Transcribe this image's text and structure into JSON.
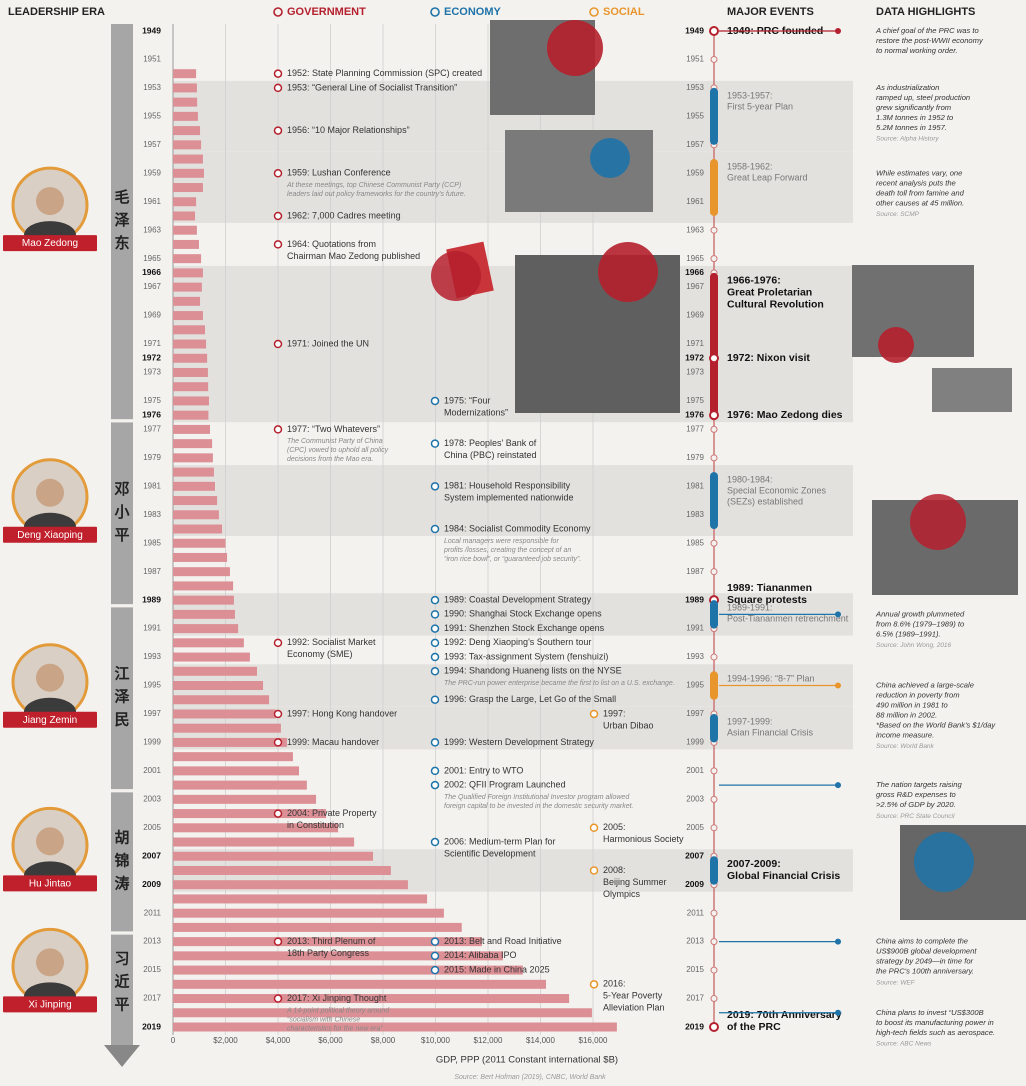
{
  "headers": {
    "leadership": "LEADERSHIP ERA",
    "government": "GOVERNMENT",
    "economy": "ECONOMY",
    "social": "SOCIAL",
    "major_events": "MAJOR EVENTS",
    "data_highlights": "DATA HIGHLIGHTS"
  },
  "chart_data": {
    "type": "bar",
    "orientation": "horizontal",
    "color": "#dc9096",
    "categories": [
      "1949",
      null,
      "1951",
      null,
      "1953",
      null,
      "1955",
      null,
      "1957",
      null,
      "1959",
      null,
      "1961",
      null,
      "1963",
      null,
      "1965",
      "1966",
      "1967",
      null,
      "1969",
      null,
      "1971",
      "1972",
      "1973",
      null,
      "1975",
      "1976",
      "1977",
      null,
      "1979",
      null,
      "1981",
      null,
      "1983",
      null,
      "1985",
      null,
      "1987",
      null,
      "1989",
      null,
      "1991",
      null,
      "1993",
      null,
      "1995",
      null,
      "1997",
      null,
      "1999",
      null,
      "2001",
      null,
      "2003",
      null,
      "2005",
      null,
      "2007",
      null,
      "2009",
      null,
      "2011",
      null,
      "2013",
      null,
      "2015",
      null,
      "2017",
      null,
      "2019"
    ],
    "values": [
      null,
      null,
      null,
      880,
      910,
      920,
      950,
      1030,
      1070,
      1140,
      1180,
      1140,
      880,
      840,
      910,
      990,
      1070,
      1140,
      1100,
      1030,
      1140,
      1220,
      1260,
      1300,
      1330,
      1340,
      1370,
      1350,
      1410,
      1490,
      1520,
      1560,
      1600,
      1680,
      1750,
      1870,
      2000,
      2060,
      2170,
      2290,
      2320,
      2360,
      2480,
      2700,
      2930,
      3200,
      3430,
      3660,
      3920,
      4110,
      4340,
      4570,
      4800,
      5100,
      5450,
      5830,
      6290,
      6900,
      7620,
      8300,
      8950,
      9680,
      10320,
      11000,
      11770,
      12570,
      13330,
      14210,
      15090,
      15960,
      16910
    ],
    "bold_years": [
      1949,
      1966,
      1972,
      1976,
      1989,
      2007,
      2009,
      2019
    ],
    "xlim": [
      0,
      17500
    ],
    "xticks": [
      0,
      {
        "value": 2000,
        "label": "$2,000"
      },
      {
        "value": 4000,
        "label": "$4,000"
      },
      {
        "value": 6000,
        "label": "$6,000"
      },
      {
        "value": 8000,
        "label": "$8,000"
      },
      {
        "value": 10000,
        "label": "$10,000"
      },
      {
        "value": 12000,
        "label": "$12,000"
      },
      {
        "value": 14000,
        "label": "$14,000"
      },
      {
        "value": 16000,
        "label": "$16,000"
      }
    ],
    "grid": true,
    "xlabel": "GDP, PPP (2011 Constant international $B)",
    "source": "Source: Bert Hofman (2019), CNBC, World Bank"
  },
  "leaders": [
    {
      "name": "Mao Zedong",
      "chinese": "毛泽东",
      "start": 1949,
      "end": 1976
    },
    {
      "name": "Deng Xiaoping",
      "chinese": "邓小平",
      "start": 1977,
      "end": 1989
    },
    {
      "name": "Jiang Zemin",
      "chinese": "江泽民",
      "start": 1990,
      "end": 2002
    },
    {
      "name": "Hu Jintao",
      "chinese": "胡锦涛",
      "start": 2003,
      "end": 2012
    },
    {
      "name": "Xi Jinping",
      "chinese": "习近平",
      "start": 2013,
      "end": 2019
    }
  ],
  "government": [
    {
      "year": 1952,
      "lines": [
        "1952: State Planning Commission (SPC) created"
      ]
    },
    {
      "year": 1953,
      "lines": [
        "1953: “General Line of Socialist Transition”"
      ]
    },
    {
      "year": 1956,
      "lines": [
        "1956: “10 Major Relationships”"
      ]
    },
    {
      "year": 1959,
      "lines": [
        "1959: Lushan Conference"
      ],
      "note": [
        "At these meetings, top Chinese Communist Party (CCP)",
        "leaders laid out policy frameworks for the country's future."
      ]
    },
    {
      "year": 1962,
      "lines": [
        "1962: 7,000 Cadres meeting"
      ]
    },
    {
      "year": 1964,
      "lines": [
        "1964: Quotations from",
        "Chairman Mao Zedong published"
      ]
    },
    {
      "year": 1971,
      "lines": [
        "1971: Joined the UN"
      ]
    },
    {
      "year": 1977,
      "lines": [
        "1977: “Two Whatevers”"
      ],
      "note": [
        "The Communist Party of China",
        "(CPC) vowed to uphold all policy",
        "decisions from the Mao era."
      ]
    },
    {
      "year": 1992,
      "lines": [
        "1992: Socialist Market",
        "Economy (SME)"
      ]
    },
    {
      "year": 1997,
      "lines": [
        "1997: Hong Kong handover"
      ]
    },
    {
      "year": 1999,
      "lines": [
        "1999: Macau handover"
      ]
    },
    {
      "year": 2004,
      "lines": [
        "2004: Private Property",
        "in Constitution"
      ]
    },
    {
      "year": 2013,
      "lines": [
        "2013: Third Plenum of",
        "18th Party Congress"
      ]
    },
    {
      "year": 2017,
      "lines": [
        "2017: Xi Jinping Thought"
      ],
      "note": [
        "A 14-point political theory around",
        "“socialism with Chinese",
        "characteristics for the new era”"
      ]
    }
  ],
  "economy": [
    {
      "year": 1975,
      "lines": [
        "1975: “Four",
        "Modernizations”"
      ]
    },
    {
      "year": 1978,
      "lines": [
        "1978: Peoples' Bank of",
        "China (PBC) reinstated"
      ]
    },
    {
      "year": 1981,
      "lines": [
        "1981: Household Responsibility",
        "System implemented nationwide"
      ]
    },
    {
      "year": 1984,
      "lines": [
        "1984: Socialist Commodity Economy"
      ],
      "note": [
        "Local managers were responsible for",
        "profits /losses, creating the concept of an",
        "“iron rice bowl”, or “guaranteed job security”."
      ]
    },
    {
      "year": 1989,
      "lines": [
        "1989: Coastal Development Strategy"
      ]
    },
    {
      "year": 1990,
      "lines": [
        "1990: Shanghai Stock Exchange opens"
      ]
    },
    {
      "year": 1991,
      "lines": [
        "1991: Shenzhen Stock Exchange opens"
      ]
    },
    {
      "year": 1992,
      "lines": [
        "1992: Deng Xiaoping's Southern tour"
      ]
    },
    {
      "year": 1993,
      "lines": [
        "1993: Tax-assignment System (fenshuizi)"
      ]
    },
    {
      "year": 1994,
      "lines": [
        "1994: Shandong Huaneng lists on the NYSE"
      ],
      "note": [
        "The PRC-run power enterprise became the first to list on a U.S. exchange."
      ]
    },
    {
      "year": 1996,
      "lines": [
        "1996: Grasp the Large, Let Go of the Small"
      ]
    },
    {
      "year": 1999,
      "lines": [
        "1999: Western Development Strategy"
      ]
    },
    {
      "year": 2001,
      "lines": [
        "2001: Entry to WTO"
      ]
    },
    {
      "year": 2002,
      "lines": [
        "2002: QFII Program Launched"
      ],
      "note": [
        "The Qualified Foreign Institutional Investor program allowed",
        "foreign capital to be invested in the domestic security market."
      ]
    },
    {
      "year": 2006,
      "lines": [
        "2006: Medium-term Plan for",
        "Scientific Development"
      ]
    },
    {
      "year": 2013,
      "lines": [
        "2013: Belt and Road Initiative"
      ]
    },
    {
      "year": 2014,
      "lines": [
        "2014: Alibaba IPO"
      ]
    },
    {
      "year": 2015,
      "lines": [
        "2015: Made in China 2025"
      ]
    }
  ],
  "social": [
    {
      "year": 1997,
      "lines": [
        "1997:",
        "Urban Dibao"
      ]
    },
    {
      "year": 2005,
      "lines": [
        "2005:",
        "Harmonious Society"
      ]
    },
    {
      "year": 2008,
      "lines": [
        "2008:",
        "Beijing Summer",
        "Olympics"
      ]
    },
    {
      "year": 2016,
      "lines": [
        "2016:",
        "5-Year Poverty",
        "Alleviation Plan"
      ]
    }
  ],
  "major_events": [
    {
      "year": 1949,
      "lines": [
        "1949: PRC founded"
      ],
      "bold": true,
      "color": "#b5202e"
    },
    {
      "start": 1953,
      "end": 1957,
      "lines": [
        "1953-1957:",
        "First 5-year Plan"
      ],
      "bold": false,
      "color": "#1e73a8"
    },
    {
      "start": 1958,
      "end": 1962,
      "lines": [
        "1958-1962:",
        "Great Leap Forward"
      ],
      "bold": false,
      "color": "#e8962c"
    },
    {
      "start": 1966,
      "end": 1976,
      "lines": [
        "1966-1976:",
        "Great Proletarian",
        "Cultural Revolution"
      ],
      "bold": true,
      "color": "#b5202e"
    },
    {
      "year": 1972,
      "lines": [
        "1972: Nixon visit"
      ],
      "bold": true,
      "color": "#b5202e"
    },
    {
      "year": 1976,
      "lines": [
        "1976: Mao Zedong dies"
      ],
      "bold": true,
      "color": "#b5202e"
    },
    {
      "start": 1980,
      "end": 1984,
      "lines": [
        "1980-1984:",
        "Special Economic Zones",
        "(SEZs) established"
      ],
      "bold": false,
      "color": "#1e73a8"
    },
    {
      "year": 1989,
      "lines": [
        "1989: Tiananmen",
        "Square protests"
      ],
      "bold": true,
      "color": "#b5202e"
    },
    {
      "start": 1989,
      "end": 1991,
      "lines": [
        "1989-1991:",
        "Post-Tiananmen retrenchment"
      ],
      "bold": false,
      "color": "#1e73a8"
    },
    {
      "start": 1994,
      "end": 1996,
      "lines": [
        "1994-1996: “8-7” Plan"
      ],
      "bold": false,
      "color": "#e8962c"
    },
    {
      "start": 1997,
      "end": 1999,
      "lines": [
        "1997-1999:",
        "Asian Financial Crisis"
      ],
      "bold": false,
      "color": "#1e73a8"
    },
    {
      "start": 2007,
      "end": 2009,
      "lines": [
        "2007-2009:",
        "Global Financial Crisis"
      ],
      "bold": true,
      "color": "#1e73a8"
    },
    {
      "year": 2019,
      "lines": [
        "2019: 70th Anniversary",
        "of the PRC"
      ],
      "bold": true,
      "color": "#b5202e"
    }
  ],
  "data_highlights": [
    {
      "year": 1949,
      "color": "#b5202e",
      "lines": [
        "A chief goal of the PRC was to",
        "restore the post-WWII economy",
        "to normal working order."
      ]
    },
    {
      "year": 1953,
      "lines": [
        "As industrialization",
        "ramped up, steel production",
        "grew significantly from",
        "1.3M tonnes in 1952 to",
        "5.2M tonnes in 1957."
      ],
      "source": "Source: Alpha History"
    },
    {
      "year": 1959,
      "lines": [
        "While estimates vary, one",
        "recent analysis puts the",
        "death toll from famine and",
        "other causes at 45 million."
      ],
      "source": "Source: SCMP"
    },
    {
      "year": 1990,
      "color": "#1e73a8",
      "lines": [
        "Annual growth plummeted",
        "from 8.6% (1979–1989) to",
        "6.5% (1989–1991)."
      ],
      "source": "Source: John Wong, 2016"
    },
    {
      "year": 1995,
      "color": "#e8962c",
      "lines": [
        "China achieved a large-scale",
        "reduction in poverty from",
        "490 million in 1981 to",
        "88 million in 2002.",
        "*Based on the World Bank's $1/day",
        "income measure."
      ],
      "source": "Source: World Bank"
    },
    {
      "year": 2002,
      "color": "#1e73a8",
      "lines": [
        "The nation targets raising",
        "gross R&D expenses to",
        ">2.5% of GDP by 2020."
      ],
      "source": "Source: PRC State Council"
    },
    {
      "year": 2013,
      "color": "#1e73a8",
      "lines": [
        "China aims to complete the",
        "US$900B global development",
        "strategy by 2049—in time for",
        "the PRC's 100th anniversary."
      ],
      "source": "Source: WEF"
    },
    {
      "year": 2018,
      "color": "#1e73a8",
      "lines": [
        "China plans to invest “US$300B",
        "to boost its manufacturing power in",
        "high-tech fields such as aerospace."
      ],
      "source": "Source: ABC News"
    }
  ]
}
